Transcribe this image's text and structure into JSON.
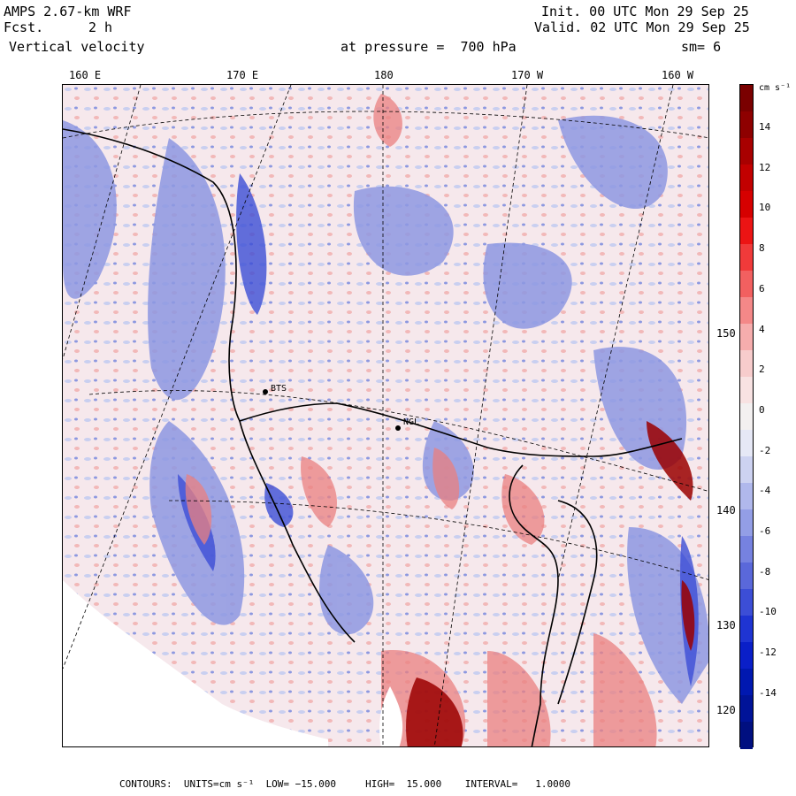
{
  "header": {
    "model": "AMPS 2.67-km WRF",
    "forecast_label": "Fcst.",
    "forecast_value": "2 h",
    "field": "Vertical velocity",
    "level": "at pressure =  700 hPa",
    "init": "Init. 00 UTC Mon 29 Sep 25",
    "valid": "Valid. 02 UTC Mon 29 Sep 25",
    "smoothing": "sm= 6"
  },
  "lon_labels": [
    "160 E",
    "170 E",
    "180",
    "170 W",
    "160 W"
  ],
  "lat_labels": [
    "150 W",
    "140 W",
    "130 W",
    "120 W"
  ],
  "stations": [
    "NGL",
    "BTS"
  ],
  "colorbar": {
    "units": "cm s⁻¹",
    "ticks": [
      "14",
      "12",
      "10",
      "8",
      "6",
      "4",
      "2",
      "0",
      "-2",
      "-4",
      "-6",
      "-8",
      "-10",
      "-12",
      "-14"
    ],
    "colors": [
      "#7a0000",
      "#8e0000",
      "#a80000",
      "#c20000",
      "#d60000",
      "#ec1414",
      "#f03a3a",
      "#f26060",
      "#f48888",
      "#f6adad",
      "#f7cccc",
      "#f8e2e2",
      "#f3f0f0",
      "#e6e8f6",
      "#cdd2f1",
      "#b0b8ec",
      "#939ee6",
      "#7682e0",
      "#5a68da",
      "#3c4ed6",
      "#1f34d2",
      "#0a1fc8",
      "#0018b0",
      "#001398",
      "#000f80"
    ]
  },
  "footer": "CONTOURS:  UNITS=cm s⁻¹  LOW= −15.000     HIGH=  15.000    INTERVAL=   1.0000",
  "map_colors": {
    "background_pos": "#f6e8ec",
    "blue": "#6f7fd8",
    "light_blue": "#c9cff0",
    "red": "#e05050",
    "dark_red": "#9a0000",
    "land": "#ffffff"
  }
}
